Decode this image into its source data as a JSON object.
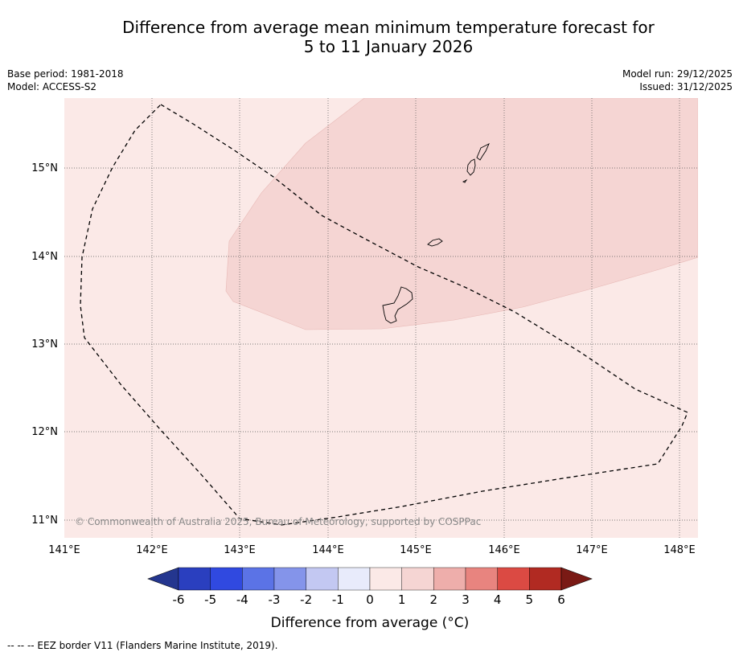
{
  "title": {
    "line1": "Difference from average mean minimum temperature forecast for",
    "line2": "5 to 11 January 2026"
  },
  "meta": {
    "base_period": "Base period: 1981-2018",
    "model": "Model: ACCESS-S2",
    "model_run": "Model run: 29/12/2025",
    "issued": "Issued: 31/12/2025"
  },
  "map": {
    "lat_labels": [
      "15°N",
      "14°N",
      "13°N",
      "12°N",
      "11°N"
    ],
    "lon_labels": [
      "141°E",
      "142°E",
      "143°E",
      "144°E",
      "145°E",
      "146°E",
      "147°E",
      "148°E"
    ],
    "copyright": "© Commonwealth of Australia 2025, Bureau of Meteorology, supported by COSPPac",
    "regions": [
      {
        "name": "background",
        "category": "0 to 1",
        "color": "#fbe9e7"
      },
      {
        "name": "warm-anomaly-area",
        "category": "1 to 2",
        "color": "#f5d5d3"
      }
    ]
  },
  "colorbar": {
    "labels": [
      "-6",
      "-5",
      "-4",
      "-3",
      "-2",
      "-1",
      "0",
      "1",
      "2",
      "3",
      "4",
      "5",
      "6"
    ],
    "colors": [
      "#24368f",
      "#2a3fbf",
      "#3049e0",
      "#5b73e6",
      "#8494ea",
      "#c3c8f2",
      "#e8ebfb",
      "#fbe9e7",
      "#f5d5d3",
      "#eeaeab",
      "#e8847f",
      "#db4a43",
      "#b12a22",
      "#7a1a15"
    ],
    "title": "Difference from average (°C)"
  },
  "footnote": "--  --  -- EEZ border V11 (Flanders Marine Institute, 2019)."
}
